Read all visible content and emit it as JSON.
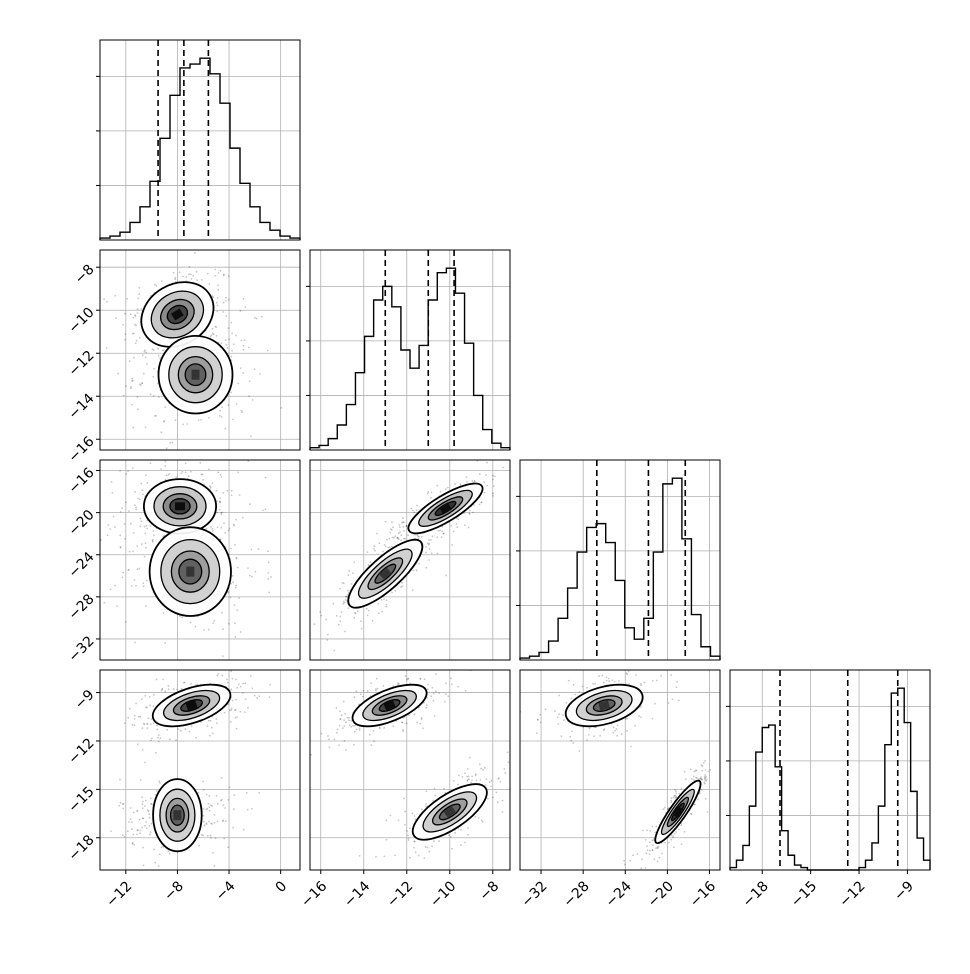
{
  "chart_data": {
    "type": "corner",
    "grid": true,
    "params": [
      {
        "range": [
          -14,
          1.5
        ],
        "ticks": [
          -12,
          -8,
          -4,
          0
        ],
        "quantiles": [
          -9.5,
          -7.5,
          -5.6
        ],
        "hist": [
          1,
          2,
          4,
          9,
          17,
          30,
          52,
          74,
          88,
          90,
          93,
          85,
          70,
          47,
          29,
          17,
          9,
          5,
          2,
          1
        ]
      },
      {
        "range": [
          -16.5,
          -7.2
        ],
        "ticks": [
          -16,
          -14,
          -12,
          -10,
          -8
        ],
        "quantiles": [
          -13.0,
          -11.0,
          -9.8
        ],
        "hist": [
          1,
          2,
          5,
          11,
          20,
          34,
          50,
          66,
          72,
          63,
          44,
          36,
          46,
          66,
          78,
          80,
          69,
          47,
          24,
          9,
          3,
          1
        ]
      },
      {
        "range": [
          -34,
          -15
        ],
        "ticks": [
          -32,
          -28,
          -24,
          -20,
          -16
        ],
        "quantiles": [
          -26.7,
          -21.8,
          -18.3
        ],
        "hist": [
          1,
          2,
          4,
          10,
          22,
          38,
          57,
          70,
          72,
          62,
          42,
          17,
          11,
          22,
          57,
          93,
          96,
          64,
          24,
          7,
          2
        ]
      },
      {
        "range": [
          -20,
          -7.6
        ],
        "ticks": [
          -18,
          -15,
          -12,
          -9
        ],
        "quantiles": [
          -16.9,
          -12.7,
          -9.6
        ],
        "hist": [
          1,
          4,
          10,
          26,
          48,
          58,
          59,
          42,
          16,
          6,
          2,
          1,
          0,
          0,
          0,
          0,
          0,
          0,
          0,
          0,
          1,
          4,
          11,
          26,
          51,
          72,
          74,
          60,
          32,
          13,
          4
        ]
      }
    ],
    "pairs": [
      {
        "row": 1,
        "col": 0,
        "blobs": [
          {
            "mx": -8.0,
            "my": -10.2,
            "sx": 1.3,
            "sy": 0.7,
            "rho": 0.2,
            "w": 1.2
          },
          {
            "mx": -6.6,
            "my": -13.0,
            "sx": 1.4,
            "sy": 0.8,
            "rho": 0.0,
            "w": 1.0
          }
        ]
      },
      {
        "row": 2,
        "col": 0,
        "blobs": [
          {
            "mx": -7.8,
            "my": -19.4,
            "sx": 1.3,
            "sy": 1.2,
            "rho": 0.0,
            "w": 1.2
          },
          {
            "mx": -7.0,
            "my": -25.6,
            "sx": 1.6,
            "sy": 1.8,
            "rho": 0.0,
            "w": 1.0
          }
        ]
      },
      {
        "row": 2,
        "col": 1,
        "blobs": [
          {
            "mx": -10.2,
            "my": -19.6,
            "sx": 0.8,
            "sy": 1.1,
            "rho": 0.8,
            "w": 1.3
          },
          {
            "mx": -13.0,
            "my": -25.8,
            "sx": 0.8,
            "sy": 1.5,
            "rho": 0.8,
            "w": 1.0
          }
        ]
      },
      {
        "row": 3,
        "col": 0,
        "blobs": [
          {
            "mx": -6.9,
            "my": -9.8,
            "sx": 1.4,
            "sy": 0.6,
            "rho": 0.5,
            "w": 1.2
          },
          {
            "mx": -8.0,
            "my": -16.6,
            "sx": 1.3,
            "sy": 0.7,
            "rho": 0.0,
            "w": 1.0
          }
        ]
      },
      {
        "row": 3,
        "col": 1,
        "blobs": [
          {
            "mx": -12.8,
            "my": -9.8,
            "sx": 0.8,
            "sy": 0.6,
            "rho": 0.6,
            "w": 1.2
          },
          {
            "mx": -10.0,
            "my": -16.4,
            "sx": 0.8,
            "sy": 0.8,
            "rho": 0.7,
            "w": 1.0
          }
        ]
      },
      {
        "row": 3,
        "col": 2,
        "blobs": [
          {
            "mx": -26.0,
            "my": -9.8,
            "sx": 1.7,
            "sy": 0.6,
            "rho": 0.4,
            "w": 1.0
          },
          {
            "mx": -19.0,
            "my": -16.4,
            "sx": 1.0,
            "sy": 0.9,
            "rho": 0.9,
            "w": 1.3
          }
        ]
      }
    ]
  }
}
